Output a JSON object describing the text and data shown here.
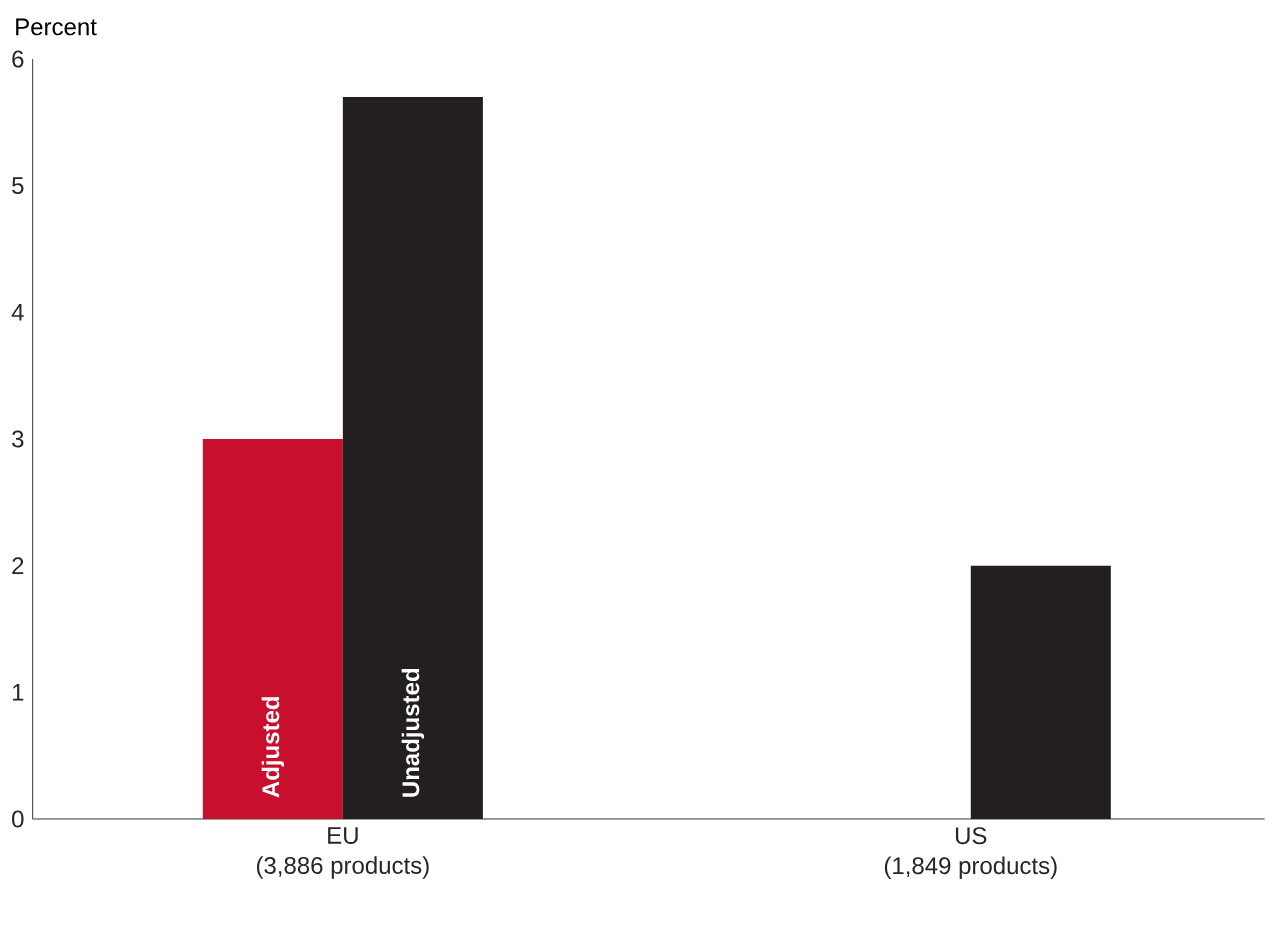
{
  "chart_data": {
    "type": "bar",
    "ylabel": "Percent",
    "categories": [
      "EU\n(3,886 products)",
      "US\n(1,849 products)"
    ],
    "series": [
      {
        "name": "Adjusted",
        "color": "#c8102e",
        "values": [
          3.0,
          null
        ]
      },
      {
        "name": "Unadjusted",
        "color": "#231f20",
        "values": [
          5.7,
          2.0
        ]
      }
    ],
    "ylim": [
      0,
      6
    ],
    "yticks": [
      0,
      1,
      2,
      3,
      4,
      5,
      6
    ],
    "grid": false,
    "legend": false
  }
}
